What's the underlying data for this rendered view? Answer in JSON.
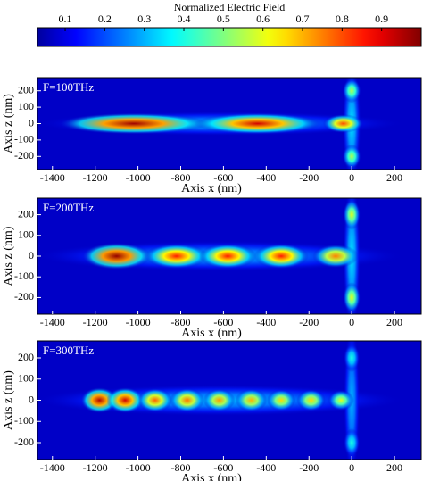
{
  "chart_data": [
    {
      "type": "colorbar",
      "title": "Normalized Electric Field",
      "colormap": "jet",
      "xlim": [
        0.03,
        1.0
      ],
      "xticks": [
        0.1,
        0.2,
        0.3,
        0.4,
        0.5,
        0.6,
        0.7,
        0.8,
        0.9
      ]
    },
    {
      "type": "heatmap",
      "title": "F=100THz",
      "xlabel": "Axis x (nm)",
      "ylabel": "Axis z (nm)",
      "colormap": "jet",
      "background": 0.07,
      "xlim": [
        -1470,
        325
      ],
      "ylim": [
        -280,
        280
      ],
      "xticks": [
        -1400,
        -1200,
        -1000,
        -800,
        -600,
        -400,
        -200,
        0,
        200
      ],
      "yticks": [
        -200,
        -100,
        0,
        100,
        200
      ],
      "hotspots": [
        {
          "x": -620,
          "z": 0,
          "rx": 640,
          "rz": 55,
          "peak": 0.3
        },
        {
          "x": 0,
          "z": 0,
          "rx": 32,
          "rz": 270,
          "peak": 0.35
        },
        {
          "x": 0,
          "z": 200,
          "rx": 32,
          "rz": 55,
          "peak": 0.55
        },
        {
          "x": 0,
          "z": -200,
          "rx": 32,
          "rz": 55,
          "peak": 0.55
        },
        {
          "x": -1020,
          "z": 0,
          "rx": 260,
          "rz": 48,
          "peak": 0.97
        },
        {
          "x": -440,
          "z": 0,
          "rx": 220,
          "rz": 48,
          "peak": 0.92
        },
        {
          "x": -40,
          "z": 0,
          "rx": 70,
          "rz": 42,
          "peak": 0.8
        }
      ]
    },
    {
      "type": "heatmap",
      "title": "F=200THz",
      "xlabel": "Axis x (nm)",
      "ylabel": "Axis z (nm)",
      "colormap": "jet",
      "background": 0.07,
      "xlim": [
        -1470,
        325
      ],
      "ylim": [
        -280,
        280
      ],
      "xticks": [
        -1400,
        -1200,
        -1000,
        -800,
        -600,
        -400,
        -200,
        0,
        200
      ],
      "yticks": [
        -200,
        -100,
        0,
        100,
        200
      ],
      "hotspots": [
        {
          "x": -620,
          "z": 0,
          "rx": 640,
          "rz": 55,
          "peak": 0.3
        },
        {
          "x": 0,
          "z": 0,
          "rx": 30,
          "rz": 270,
          "peak": 0.35
        },
        {
          "x": 0,
          "z": 200,
          "rx": 30,
          "rz": 55,
          "peak": 0.6
        },
        {
          "x": 0,
          "z": -200,
          "rx": 30,
          "rz": 55,
          "peak": 0.6
        },
        {
          "x": -1100,
          "z": 0,
          "rx": 120,
          "rz": 48,
          "peak": 0.98
        },
        {
          "x": -820,
          "z": 0,
          "rx": 110,
          "rz": 45,
          "peak": 0.85
        },
        {
          "x": -580,
          "z": 0,
          "rx": 100,
          "rz": 45,
          "peak": 0.85
        },
        {
          "x": -330,
          "z": 0,
          "rx": 95,
          "rz": 45,
          "peak": 0.85
        },
        {
          "x": -75,
          "z": 0,
          "rx": 80,
          "rz": 42,
          "peak": 0.75
        }
      ]
    },
    {
      "type": "heatmap",
      "title": "F=300THz",
      "xlabel": "Axis x (nm)",
      "ylabel": "Axis z (nm)",
      "colormap": "jet",
      "background": 0.07,
      "xlim": [
        -1470,
        325
      ],
      "ylim": [
        -280,
        280
      ],
      "xticks": [
        -1400,
        -1200,
        -1000,
        -800,
        -600,
        -400,
        -200,
        0,
        200
      ],
      "yticks": [
        -200,
        -100,
        0,
        100,
        200
      ],
      "hotspots": [
        {
          "x": -620,
          "z": 0,
          "rx": 640,
          "rz": 55,
          "peak": 0.3
        },
        {
          "x": 0,
          "z": 0,
          "rx": 28,
          "rz": 270,
          "peak": 0.3
        },
        {
          "x": 0,
          "z": 200,
          "rx": 28,
          "rz": 50,
          "peak": 0.4
        },
        {
          "x": 0,
          "z": -200,
          "rx": 28,
          "rz": 50,
          "peak": 0.4
        },
        {
          "x": -1180,
          "z": 0,
          "rx": 65,
          "rz": 45,
          "peak": 0.95
        },
        {
          "x": -1060,
          "z": 0,
          "rx": 65,
          "rz": 45,
          "peak": 0.92
        },
        {
          "x": -920,
          "z": 0,
          "rx": 60,
          "rz": 42,
          "peak": 0.78
        },
        {
          "x": -770,
          "z": 0,
          "rx": 60,
          "rz": 42,
          "peak": 0.76
        },
        {
          "x": -620,
          "z": 0,
          "rx": 55,
          "rz": 40,
          "peak": 0.72
        },
        {
          "x": -470,
          "z": 0,
          "rx": 55,
          "rz": 40,
          "peak": 0.7
        },
        {
          "x": -330,
          "z": 0,
          "rx": 50,
          "rz": 38,
          "peak": 0.66
        },
        {
          "x": -190,
          "z": 0,
          "rx": 50,
          "rz": 38,
          "peak": 0.66
        },
        {
          "x": -50,
          "z": 0,
          "rx": 45,
          "rz": 36,
          "peak": 0.6
        }
      ]
    }
  ]
}
